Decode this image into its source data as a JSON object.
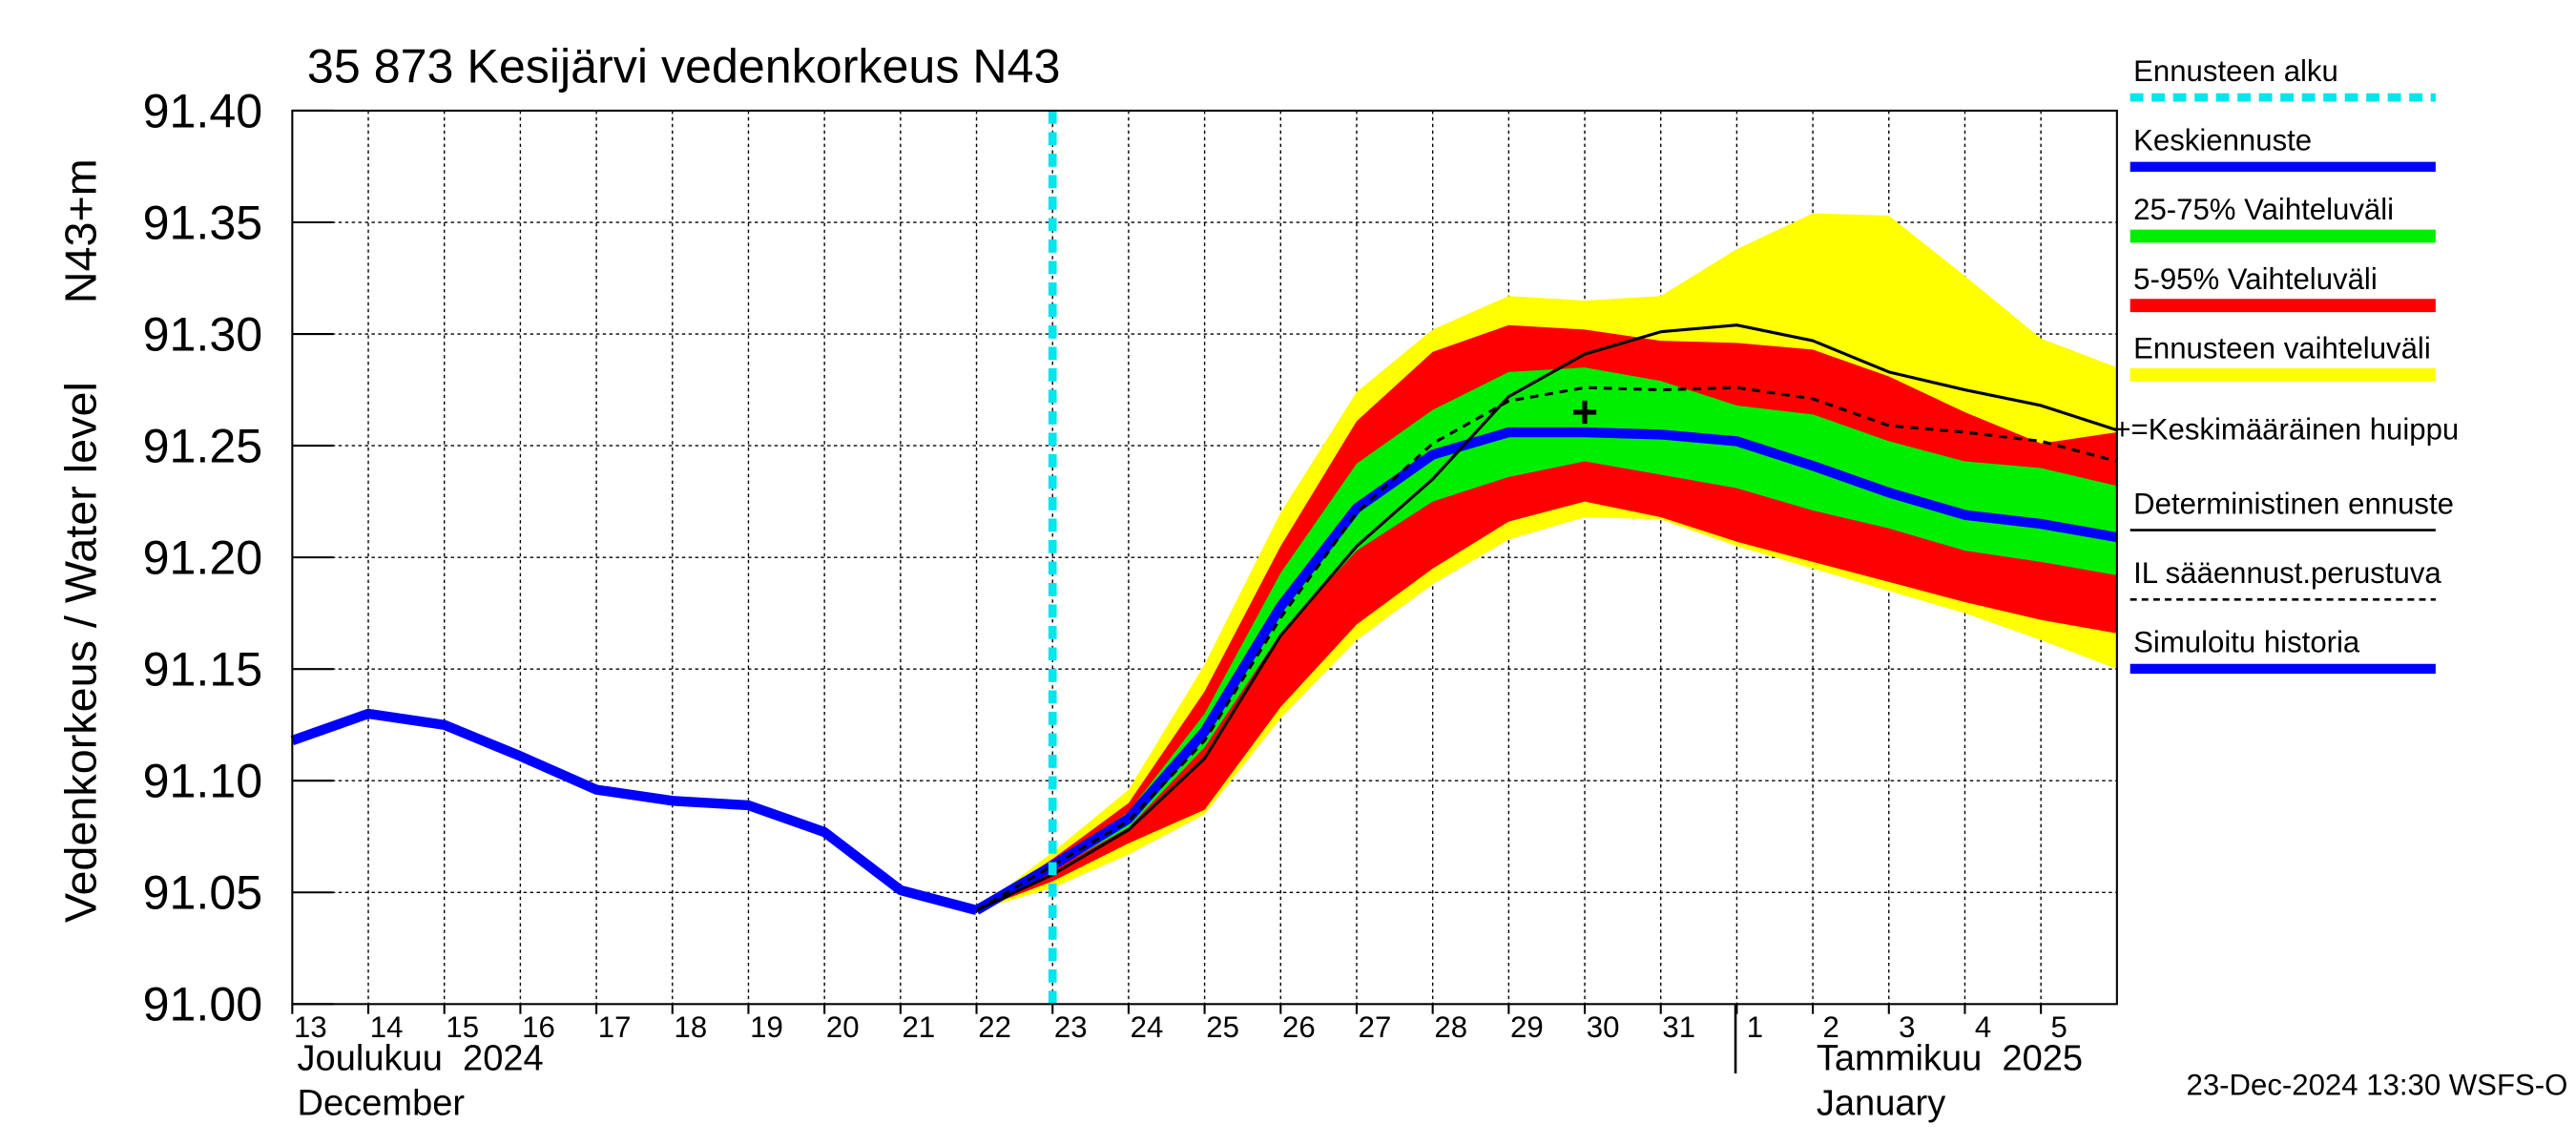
{
  "chart_data": {
    "type": "line",
    "title": "35 873 Kesijärvi vedenkorkeus N43",
    "y_label": "Vedenkorkeus / Water level",
    "y_unit": "N43+m",
    "ylim": [
      91.0,
      91.4
    ],
    "yticks": [
      {
        "value": 91.0,
        "label": "91.00"
      },
      {
        "value": 91.05,
        "label": "91.05"
      },
      {
        "value": 91.1,
        "label": "91.10"
      },
      {
        "value": 91.15,
        "label": "91.15"
      },
      {
        "value": 91.2,
        "label": "91.20"
      },
      {
        "value": 91.25,
        "label": "91.25"
      },
      {
        "value": 91.3,
        "label": "91.30"
      },
      {
        "value": 91.35,
        "label": "91.35"
      },
      {
        "value": 91.4,
        "label": "91.40"
      }
    ],
    "xlim": [
      "2024-12-13",
      "2025-01-06"
    ],
    "xticks": [
      {
        "value": "2024-12-13",
        "label": "13"
      },
      {
        "value": "2024-12-14",
        "label": "14"
      },
      {
        "value": "2024-12-15",
        "label": "15"
      },
      {
        "value": "2024-12-16",
        "label": "16"
      },
      {
        "value": "2024-12-17",
        "label": "17"
      },
      {
        "value": "2024-12-18",
        "label": "18"
      },
      {
        "value": "2024-12-19",
        "label": "19"
      },
      {
        "value": "2024-12-20",
        "label": "20"
      },
      {
        "value": "2024-12-21",
        "label": "21"
      },
      {
        "value": "2024-12-22",
        "label": "22"
      },
      {
        "value": "2024-12-23",
        "label": "23"
      },
      {
        "value": "2024-12-24",
        "label": "24"
      },
      {
        "value": "2024-12-25",
        "label": "25"
      },
      {
        "value": "2024-12-26",
        "label": "26"
      },
      {
        "value": "2024-12-27",
        "label": "27"
      },
      {
        "value": "2024-12-28",
        "label": "28"
      },
      {
        "value": "2024-12-29",
        "label": "29"
      },
      {
        "value": "2024-12-30",
        "label": "30"
      },
      {
        "value": "2024-12-31",
        "label": "31"
      },
      {
        "value": "2025-01-01",
        "label": "1"
      },
      {
        "value": "2025-01-02",
        "label": "2"
      },
      {
        "value": "2025-01-03",
        "label": "3"
      },
      {
        "value": "2025-01-04",
        "label": "4"
      },
      {
        "value": "2025-01-05",
        "label": "5"
      }
    ],
    "months": [
      "Joulukuu  2024",
      "December",
      "Tammikuu  2025",
      "January"
    ],
    "grid": true,
    "forecast_start": {
      "name": "Ennusteen alku",
      "x": "2024-12-23",
      "color": "#00e5ee"
    },
    "series": [
      {
        "name": "Keskiennuste",
        "kind": "line",
        "color": "#0000ff",
        "x": [
          "2024-12-22",
          "2024-12-23",
          "2024-12-24",
          "2024-12-25",
          "2024-12-26",
          "2024-12-27",
          "2024-12-28",
          "2024-12-29",
          "2024-12-30",
          "2024-12-31",
          "2025-01-01",
          "2025-01-02",
          "2025-01-03",
          "2025-01-04",
          "2025-01-05",
          "2025-01-06"
        ],
        "values": [
          91.042,
          91.062,
          91.083,
          91.122,
          91.178,
          91.222,
          91.246,
          91.256,
          91.256,
          91.255,
          91.252,
          91.241,
          91.229,
          91.219,
          91.215,
          91.209
        ]
      },
      {
        "name": "25-75% Vaihteluväli",
        "kind": "band",
        "color": "#00ee00",
        "x": [
          "2024-12-22",
          "2024-12-23",
          "2024-12-24",
          "2024-12-25",
          "2024-12-26",
          "2024-12-27",
          "2024-12-28",
          "2024-12-29",
          "2024-12-30",
          "2024-12-31",
          "2025-01-01",
          "2025-01-02",
          "2025-01-03",
          "2025-01-04",
          "2025-01-05",
          "2025-01-06"
        ],
        "upper": [
          91.042,
          91.063,
          91.086,
          91.13,
          91.193,
          91.242,
          91.266,
          91.283,
          91.285,
          91.279,
          91.268,
          91.264,
          91.252,
          91.243,
          91.24,
          91.232
        ],
        "lower": [
          91.042,
          91.06,
          91.079,
          91.115,
          91.166,
          91.203,
          91.225,
          91.236,
          91.243,
          91.237,
          91.231,
          91.221,
          91.213,
          91.203,
          91.198,
          91.192
        ]
      },
      {
        "name": "5-95% Vaihteluväli",
        "kind": "band",
        "color": "#ff0000",
        "x": [
          "2024-12-22",
          "2024-12-23",
          "2024-12-24",
          "2024-12-25",
          "2024-12-26",
          "2024-12-27",
          "2024-12-28",
          "2024-12-29",
          "2024-12-30",
          "2024-12-31",
          "2025-01-01",
          "2025-01-02",
          "2025-01-03",
          "2025-01-04",
          "2025-01-05",
          "2025-01-06"
        ],
        "upper": [
          91.042,
          91.065,
          91.09,
          91.14,
          91.205,
          91.261,
          91.292,
          91.304,
          91.302,
          91.297,
          91.296,
          91.293,
          91.281,
          91.265,
          91.251,
          91.256
        ],
        "lower": [
          91.042,
          91.055,
          91.072,
          91.087,
          91.133,
          91.17,
          91.195,
          91.216,
          91.225,
          91.218,
          91.207,
          91.198,
          91.189,
          91.18,
          91.172,
          91.166
        ]
      },
      {
        "name": "Ennusteen vaihteluväli",
        "kind": "band",
        "color": "#ffff00",
        "x": [
          "2024-12-22",
          "2024-12-23",
          "2024-12-24",
          "2024-12-25",
          "2024-12-26",
          "2024-12-27",
          "2024-12-28",
          "2024-12-29",
          "2024-12-30",
          "2024-12-31",
          "2025-01-01",
          "2025-01-02",
          "2025-01-03",
          "2025-01-04",
          "2025-01-05",
          "2025-01-06"
        ],
        "upper": [
          91.042,
          91.068,
          91.096,
          91.152,
          91.22,
          91.274,
          91.302,
          91.317,
          91.315,
          91.317,
          91.338,
          91.354,
          91.353,
          91.326,
          91.298,
          91.285
        ],
        "lower": [
          91.042,
          91.052,
          91.067,
          91.085,
          91.128,
          91.163,
          91.188,
          91.208,
          91.218,
          91.217,
          91.205,
          91.195,
          91.185,
          91.175,
          91.163,
          91.15
        ]
      },
      {
        "name": "+=Keskimääräinen huippu",
        "kind": "marker",
        "color": "#000000",
        "x": [
          "2024-12-30"
        ],
        "values": [
          91.265
        ]
      },
      {
        "name": "Deterministinen ennuste",
        "kind": "line",
        "color": "#000000",
        "x": [
          "2024-12-22",
          "2024-12-23",
          "2024-12-24",
          "2024-12-25",
          "2024-12-26",
          "2024-12-27",
          "2024-12-28",
          "2024-12-29",
          "2024-12-30",
          "2024-12-31",
          "2025-01-01",
          "2025-01-02",
          "2025-01-03",
          "2025-01-04",
          "2025-01-05",
          "2025-01-06"
        ],
        "values": [
          91.042,
          91.058,
          91.078,
          91.11,
          91.165,
          91.205,
          91.235,
          91.272,
          91.291,
          91.301,
          91.304,
          91.297,
          91.283,
          91.275,
          91.268,
          91.257
        ]
      },
      {
        "name": "IL sääennust.perustuva",
        "kind": "dashed",
        "color": "#000000",
        "x": [
          "2024-12-22",
          "2024-12-23",
          "2024-12-24",
          "2024-12-25",
          "2024-12-26",
          "2024-12-27",
          "2024-12-28",
          "2024-12-29",
          "2024-12-30",
          "2024-12-31",
          "2025-01-01",
          "2025-01-02",
          "2025-01-03",
          "2025-01-04",
          "2025-01-05",
          "2025-01-06"
        ],
        "values": [
          91.042,
          91.062,
          91.082,
          91.118,
          91.173,
          91.22,
          91.251,
          91.27,
          91.276,
          91.275,
          91.276,
          91.271,
          91.259,
          91.256,
          91.252,
          91.243
        ]
      },
      {
        "name": "Simuloitu historia",
        "kind": "line",
        "color": "#0000ff",
        "x": [
          "2024-12-13",
          "2024-12-14",
          "2024-12-15",
          "2024-12-16",
          "2024-12-17",
          "2024-12-18",
          "2024-12-19",
          "2024-12-20",
          "2024-12-21",
          "2024-12-22"
        ],
        "values": [
          91.118,
          91.13,
          91.125,
          91.111,
          91.096,
          91.091,
          91.089,
          91.077,
          91.051,
          91.042
        ]
      }
    ],
    "timestamp": "23-Dec-2024 13:30 WSFS-O"
  }
}
